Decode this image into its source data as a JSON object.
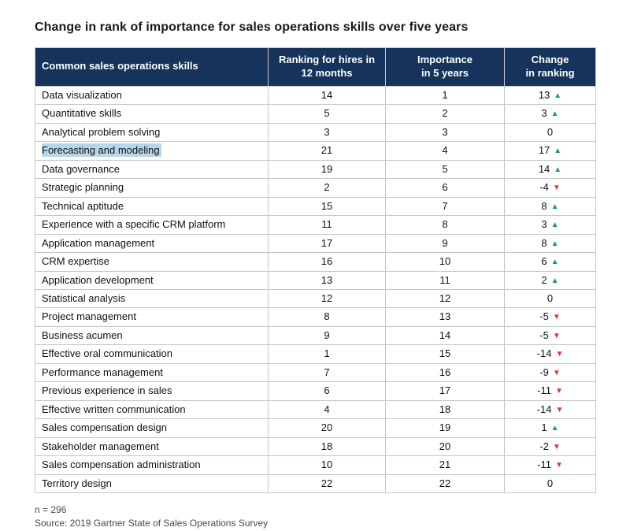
{
  "page": {
    "title": "Change in rank of importance for sales operations skills over five years"
  },
  "colors": {
    "header_bg": "#15335b",
    "up": "#16a05d",
    "down": "#e03b2f",
    "highlight": "#b7d6ea"
  },
  "footer": {
    "n_label": "n = 296",
    "source": "Source: 2019 Gartner State of Sales Operations Survey"
  },
  "chart_data": {
    "type": "table",
    "title": "Change in rank of importance for sales operations skills over five years",
    "columns": [
      "Common sales operations skills",
      "Ranking for hires in\n12 months",
      "Importance\nin 5 years",
      "Change\nin ranking"
    ],
    "rows": [
      {
        "skill": "Data visualization",
        "ranking_12_months": 14,
        "importance_5_years": 1,
        "change": 13,
        "direction": "up",
        "highlighted": false
      },
      {
        "skill": "Quantitative skills",
        "ranking_12_months": 5,
        "importance_5_years": 2,
        "change": 3,
        "direction": "up",
        "highlighted": false
      },
      {
        "skill": "Analytical problem solving",
        "ranking_12_months": 3,
        "importance_5_years": 3,
        "change": 0,
        "direction": "none",
        "highlighted": false
      },
      {
        "skill": "Forecasting and modeling",
        "ranking_12_months": 21,
        "importance_5_years": 4,
        "change": 17,
        "direction": "up",
        "highlighted": true
      },
      {
        "skill": "Data governance",
        "ranking_12_months": 19,
        "importance_5_years": 5,
        "change": 14,
        "direction": "up",
        "highlighted": false
      },
      {
        "skill": "Strategic planning",
        "ranking_12_months": 2,
        "importance_5_years": 6,
        "change": -4,
        "direction": "down",
        "highlighted": false
      },
      {
        "skill": "Technical aptitude",
        "ranking_12_months": 15,
        "importance_5_years": 7,
        "change": 8,
        "direction": "up",
        "highlighted": false
      },
      {
        "skill": "Experience with a specific CRM platform",
        "ranking_12_months": 11,
        "importance_5_years": 8,
        "change": 3,
        "direction": "up",
        "highlighted": false
      },
      {
        "skill": "Application management",
        "ranking_12_months": 17,
        "importance_5_years": 9,
        "change": 8,
        "direction": "up",
        "highlighted": false
      },
      {
        "skill": "CRM expertise",
        "ranking_12_months": 16,
        "importance_5_years": 10,
        "change": 6,
        "direction": "up",
        "highlighted": false
      },
      {
        "skill": "Application development",
        "ranking_12_months": 13,
        "importance_5_years": 11,
        "change": 2,
        "direction": "up",
        "highlighted": false
      },
      {
        "skill": "Statistical analysis",
        "ranking_12_months": 12,
        "importance_5_years": 12,
        "change": 0,
        "direction": "none",
        "highlighted": false
      },
      {
        "skill": "Project management",
        "ranking_12_months": 8,
        "importance_5_years": 13,
        "change": -5,
        "direction": "down",
        "highlighted": false
      },
      {
        "skill": "Business acumen",
        "ranking_12_months": 9,
        "importance_5_years": 14,
        "change": -5,
        "direction": "down",
        "highlighted": false
      },
      {
        "skill": "Effective oral communication",
        "ranking_12_months": 1,
        "importance_5_years": 15,
        "change": -14,
        "direction": "down",
        "highlighted": false
      },
      {
        "skill": "Performance management",
        "ranking_12_months": 7,
        "importance_5_years": 16,
        "change": -9,
        "direction": "down",
        "highlighted": false
      },
      {
        "skill": "Previous experience in sales",
        "ranking_12_months": 6,
        "importance_5_years": 17,
        "change": -11,
        "direction": "down",
        "highlighted": false
      },
      {
        "skill": "Effective written communication",
        "ranking_12_months": 4,
        "importance_5_years": 18,
        "change": -14,
        "direction": "down",
        "highlighted": false
      },
      {
        "skill": "Sales compensation design",
        "ranking_12_months": 20,
        "importance_5_years": 19,
        "change": 1,
        "direction": "up",
        "highlighted": false
      },
      {
        "skill": "Stakeholder management",
        "ranking_12_months": 18,
        "importance_5_years": 20,
        "change": -2,
        "direction": "down",
        "highlighted": false
      },
      {
        "skill": "Sales compensation administration",
        "ranking_12_months": 10,
        "importance_5_years": 21,
        "change": -11,
        "direction": "down",
        "highlighted": false
      },
      {
        "skill": "Territory design",
        "ranking_12_months": 22,
        "importance_5_years": 22,
        "change": 0,
        "direction": "none",
        "highlighted": false
      }
    ]
  }
}
